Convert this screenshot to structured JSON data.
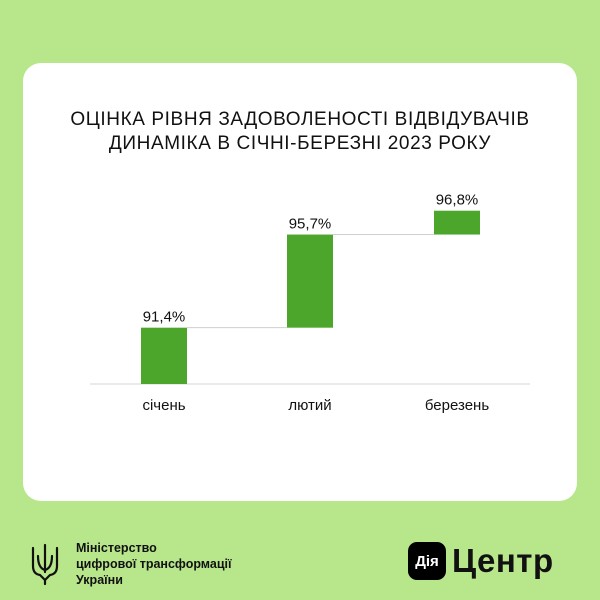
{
  "chart_data": {
    "type": "bar",
    "subtype": "waterfall",
    "title_lines": [
      "ОЦІНКА РІВНЯ ЗАДОВОЛЕНОСТІ ВІДВІДУВАЧІВ",
      "ДИНАМІКА В СІЧНІ-БЕРЕЗНІ 2023 РОКУ"
    ],
    "categories": [
      "січень",
      "лютий",
      "березень"
    ],
    "values": [
      91.4,
      95.7,
      96.8
    ],
    "data_labels": [
      "91,4%",
      "95,7%",
      "96,8%"
    ],
    "bar_color": "#4ca62b",
    "connector_color": "#cfcfcf",
    "grid": false,
    "legend": false
  },
  "footer": {
    "ministry_lines": [
      "Міністерство",
      "цифрової трансформації",
      "України"
    ],
    "dia_badge": "Дія",
    "brand_word": "Центр"
  },
  "colors": {
    "background": "#b8e68b",
    "card": "#ffffff",
    "text": "#111111"
  }
}
